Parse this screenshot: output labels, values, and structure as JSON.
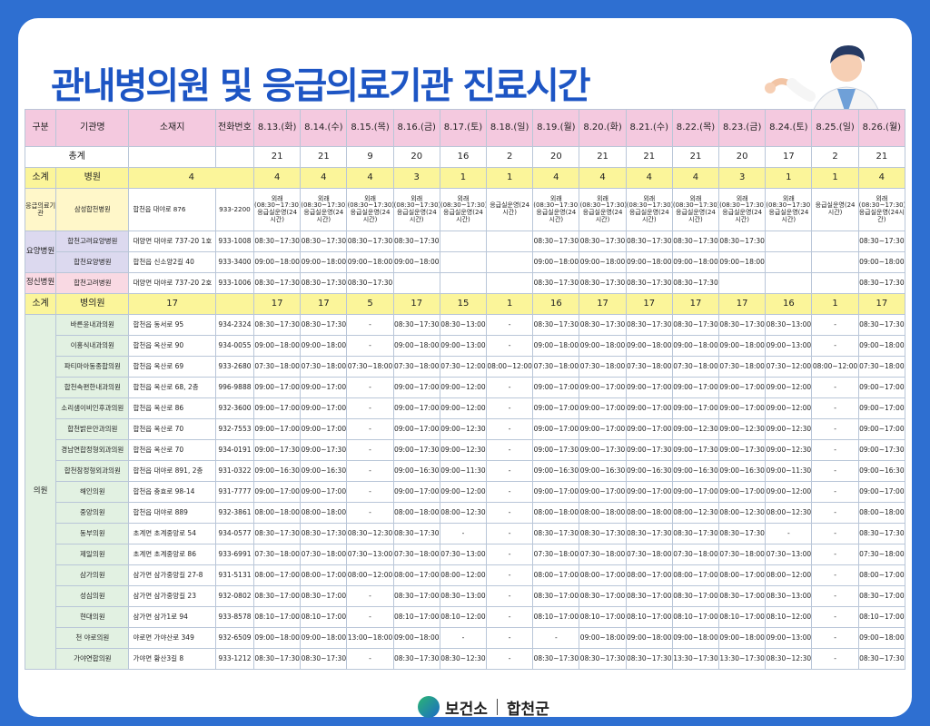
{
  "title": "관내병의원 및 응급의료기관 진료시간",
  "footer": {
    "org": "보건소",
    "county": "합천군"
  },
  "header": {
    "category": "구분",
    "name": "기관명",
    "address": "소재지",
    "phone": "전화번호",
    "dates": [
      "8.13.(화)",
      "8.14.(수)",
      "8.15.(목)",
      "8.16.(금)",
      "8.17.(토)",
      "8.18.(일)",
      "8.19.(월)",
      "8.20.(화)",
      "8.21.(수)",
      "8.22.(목)",
      "8.23.(금)",
      "8.24.(토)",
      "8.25.(일)",
      "8.26.(월)"
    ]
  },
  "total": {
    "label": "총계",
    "values": [
      "21",
      "21",
      "9",
      "20",
      "16",
      "2",
      "20",
      "21",
      "21",
      "21",
      "20",
      "17",
      "2",
      "21"
    ]
  },
  "hospital_sub": {
    "cat": "소계",
    "name": "병원",
    "count": "4",
    "values": [
      "4",
      "4",
      "4",
      "3",
      "1",
      "1",
      "4",
      "4",
      "4",
      "4",
      "3",
      "1",
      "1",
      "4"
    ]
  },
  "emergency": {
    "cat": "응급의료기관",
    "name": "삼성합천병원",
    "address": "합천읍 대야로 876",
    "phone": "933-2200",
    "cells": [
      "외래(08:30~17:30)응급실운영(24시간)",
      "외래(08:30~17:30)응급실운영(24시간)",
      "외래(08:30~17:30)응급실운영(24시간)",
      "외래(08:30~17:30)응급실운영(24시간)",
      "외래(08:30~17:30)응급실운영(24시간)",
      "응급실운영(24시간)",
      "외래(08:30~17:30)응급실운영(24시간)",
      "외래(08:30~17:30)응급실운영(24시간)",
      "외래(08:30~17:30)응급실운영(24시간)",
      "외래(08:30~17:30)응급실운영(24시간)",
      "외래(08:30~17:30)응급실운영(24시간)",
      "외래(08:30~17:30)응급실운영(24시간)",
      "응급실운영(24시간)",
      "외래(08:30~17:30)응급실운영(24시간)"
    ]
  },
  "nursing": {
    "cat": "요양병원",
    "rows": [
      {
        "name": "합천고려요양병원",
        "address": "대양면 대야로 737-20 1호",
        "phone": "933-1008",
        "values": [
          "08:30~17:30",
          "08:30~17:30",
          "08:30~17:30",
          "08:30~17:30",
          "",
          "",
          "08:30~17:30",
          "08:30~17:30",
          "08:30~17:30",
          "08:30~17:30",
          "08:30~17:30",
          "",
          "",
          "08:30~17:30"
        ]
      },
      {
        "name": "합천요양병원",
        "address": "합천읍 신소양2길 40",
        "phone": "933-3400",
        "values": [
          "09:00~18:00",
          "09:00~18:00",
          "09:00~18:00",
          "09:00~18:00",
          "",
          "",
          "09:00~18:00",
          "09:00~18:00",
          "09:00~18:00",
          "09:00~18:00",
          "09:00~18:00",
          "",
          "",
          "09:00~18:00"
        ]
      }
    ]
  },
  "psych": {
    "cat": "정신병원",
    "name": "합천고려병원",
    "address": "대양면 대야로 737-20 2호",
    "phone": "933-1006",
    "values": [
      "08:30~17:30",
      "08:30~17:30",
      "08:30~17:30",
      "",
      "",
      "",
      "08:30~17:30",
      "08:30~17:30",
      "08:30~17:30",
      "08:30~17:30",
      "",
      "",
      "",
      "08:30~17:30"
    ]
  },
  "clinic_sub": {
    "cat": "소계",
    "name": "병의원",
    "count": "17",
    "values": [
      "17",
      "17",
      "5",
      "17",
      "15",
      "1",
      "16",
      "17",
      "17",
      "17",
      "17",
      "16",
      "1",
      "17"
    ]
  },
  "clinics": {
    "cat": "의원",
    "rows": [
      {
        "name": "바른윤내과의원",
        "address": "합천읍 동서로 95",
        "phone": "934-2324",
        "values": [
          "08:30~17:30",
          "08:30~17:30",
          "-",
          "08:30~17:30",
          "08:30~13:00",
          "-",
          "08:30~17:30",
          "08:30~17:30",
          "08:30~17:30",
          "08:30~17:30",
          "08:30~17:30",
          "08:30~13:00",
          "-",
          "08:30~17:30"
        ]
      },
      {
        "name": "이홍식내과의원",
        "address": "합천읍 옥산로 90",
        "phone": "934-0055",
        "values": [
          "09:00~18:00",
          "09:00~18:00",
          "-",
          "09:00~18:00",
          "09:00~13:00",
          "-",
          "09:00~18:00",
          "09:00~18:00",
          "09:00~18:00",
          "09:00~18:00",
          "09:00~18:00",
          "09:00~13:00",
          "-",
          "09:00~18:00"
        ]
      },
      {
        "name": "파티마아동종합의원",
        "address": "합천읍 옥산로 69",
        "phone": "933-2680",
        "values": [
          "07:30~18:00",
          "07:30~18:00",
          "07:30~18:00",
          "07:30~18:00",
          "07:30~12:00",
          "08:00~12:00",
          "07:30~18:00",
          "07:30~18:00",
          "07:30~18:00",
          "07:30~18:00",
          "07:30~18:00",
          "07:30~12:00",
          "08:00~12:00",
          "07:30~18:00"
        ]
      },
      {
        "name": "합천속편한내과의원",
        "address": "합천읍 옥산로 68, 2층",
        "phone": "996-9888",
        "values": [
          "09:00~17:00",
          "09:00~17:00",
          "-",
          "09:00~17:00",
          "09:00~12:00",
          "-",
          "09:00~17:00",
          "09:00~17:00",
          "09:00~17:00",
          "09:00~17:00",
          "09:00~17:00",
          "09:00~12:00",
          "-",
          "09:00~17:00"
        ]
      },
      {
        "name": "소리샘이비인후과의원",
        "address": "합천읍 옥산로 86",
        "phone": "932-3600",
        "values": [
          "09:00~17:00",
          "09:00~17:00",
          "-",
          "09:00~17:00",
          "09:00~12:00",
          "-",
          "09:00~17:00",
          "09:00~17:00",
          "09:00~17:00",
          "09:00~17:00",
          "09:00~17:00",
          "09:00~12:00",
          "-",
          "09:00~17:00"
        ]
      },
      {
        "name": "합천밝은안과의원",
        "address": "합천읍 옥산로 70",
        "phone": "932-7553",
        "values": [
          "09:00~17:00",
          "09:00~17:00",
          "-",
          "09:00~17:00",
          "09:00~12:30",
          "-",
          "09:00~17:00",
          "09:00~17:00",
          "09:00~17:00",
          "09:00~12:30",
          "09:00~12:30",
          "09:00~12:30",
          "-",
          "09:00~17:00"
        ]
      },
      {
        "name": "경남연합정형외과의원",
        "address": "합천읍 옥산로 70",
        "phone": "934-0191",
        "values": [
          "09:00~17:30",
          "09:00~17:30",
          "-",
          "09:00~17:30",
          "09:00~12:30",
          "-",
          "09:00~17:30",
          "09:00~17:30",
          "09:00~17:30",
          "09:00~17:30",
          "09:00~17:30",
          "09:00~12:30",
          "-",
          "09:00~17:30"
        ]
      },
      {
        "name": "합천참정형외과의원",
        "address": "합천읍 대야로 891, 2층",
        "phone": "931-0322",
        "values": [
          "09:00~16:30",
          "09:00~16:30",
          "-",
          "09:00~16:30",
          "09:00~11:30",
          "-",
          "09:00~16:30",
          "09:00~16:30",
          "09:00~16:30",
          "09:00~16:30",
          "09:00~16:30",
          "09:00~11:30",
          "-",
          "09:00~16:30"
        ]
      },
      {
        "name": "해인의원",
        "address": "합천읍 충효로 98-14",
        "phone": "931-7777",
        "values": [
          "09:00~17:00",
          "09:00~17:00",
          "-",
          "09:00~17:00",
          "09:00~12:00",
          "-",
          "09:00~17:00",
          "09:00~17:00",
          "09:00~17:00",
          "09:00~17:00",
          "09:00~17:00",
          "09:00~12:00",
          "-",
          "09:00~17:00"
        ]
      },
      {
        "name": "중앙의원",
        "address": "합천읍 대야로 889",
        "phone": "932-3861",
        "values": [
          "08:00~18:00",
          "08:00~18:00",
          "-",
          "08:00~18:00",
          "08:00~12:30",
          "-",
          "08:00~18:00",
          "08:00~18:00",
          "08:00~18:00",
          "08:00~12:30",
          "08:00~12:30",
          "08:00~12:30",
          "-",
          "08:00~18:00"
        ]
      },
      {
        "name": "동부의원",
        "address": "초계면 초계중앙로 54",
        "phone": "934-0577",
        "values": [
          "08:30~17:30",
          "08:30~17:30",
          "08:30~12:30",
          "08:30~17:30",
          "-",
          "-",
          "08:30~17:30",
          "08:30~17:30",
          "08:30~17:30",
          "08:30~17:30",
          "08:30~17:30",
          "-",
          "-",
          "08:30~17:30"
        ]
      },
      {
        "name": "제일의원",
        "address": "초계면 초계중앙로 86",
        "phone": "933-6991",
        "values": [
          "07:30~18:00",
          "07:30~18:00",
          "07:30~13:00",
          "07:30~18:00",
          "07:30~13:00",
          "-",
          "07:30~18:00",
          "07:30~18:00",
          "07:30~18:00",
          "07:30~18:00",
          "07:30~18:00",
          "07:30~13:00",
          "-",
          "07:30~18:00"
        ]
      },
      {
        "name": "삼가의원",
        "address": "삼가면 삼가중앙길 27-8",
        "phone": "931-5131",
        "values": [
          "08:00~17:00",
          "08:00~17:00",
          "08:00~12:00",
          "08:00~17:00",
          "08:00~12:00",
          "-",
          "08:00~17:00",
          "08:00~17:00",
          "08:00~17:00",
          "08:00~17:00",
          "08:00~17:00",
          "08:00~12:00",
          "-",
          "08:00~17:00"
        ]
      },
      {
        "name": "성심의원",
        "address": "삼가면 삼가중앙길 23",
        "phone": "932-0802",
        "values": [
          "08:30~17:00",
          "08:30~17:00",
          "-",
          "08:30~17:00",
          "08:30~13:00",
          "-",
          "08:30~17:00",
          "08:30~17:00",
          "08:30~17:00",
          "08:30~17:00",
          "08:30~17:00",
          "08:30~13:00",
          "-",
          "08:30~17:00"
        ]
      },
      {
        "name": "현대의원",
        "address": "삼가면 삼가1로 94",
        "phone": "933-8578",
        "values": [
          "08:10~17:00",
          "08:10~17:00",
          "-",
          "08:10~17:00",
          "08:10~12:00",
          "-",
          "08:10~17:00",
          "08:10~17:00",
          "08:10~17:00",
          "08:10~17:00",
          "08:10~17:00",
          "08:10~12:00",
          "-",
          "08:10~17:00"
        ]
      },
      {
        "name": "천 야로의원",
        "address": "야로면 가야산로 349",
        "phone": "932-6509",
        "values": [
          "09:00~18:00",
          "09:00~18:00",
          "13:00~18:00",
          "09:00~18:00",
          "-",
          "-",
          "-",
          "09:00~18:00",
          "09:00~18:00",
          "09:00~18:00",
          "09:00~18:00",
          "09:00~13:00",
          "-",
          "09:00~18:00"
        ]
      },
      {
        "name": "가야연합의원",
        "address": "가야면 황산3길 8",
        "phone": "933-1212",
        "values": [
          "08:30~17:30",
          "08:30~17:30",
          "-",
          "08:30~17:30",
          "08:30~12:30",
          "-",
          "08:30~17:30",
          "08:30~17:30",
          "08:30~17:30",
          "13:30~17:30",
          "13:30~17:30",
          "08:30~12:30",
          "-",
          "08:30~17:30"
        ]
      }
    ]
  },
  "colors": {
    "background": "#2e6fd1",
    "title": "#1d55c4",
    "header": "#f4c9df",
    "subtotal": "#fbf59a",
    "clinic": "#e2f1e2"
  },
  "icons": {
    "logo": "health-center-logo-icon",
    "doctor": "doctor-illustration-icon"
  }
}
